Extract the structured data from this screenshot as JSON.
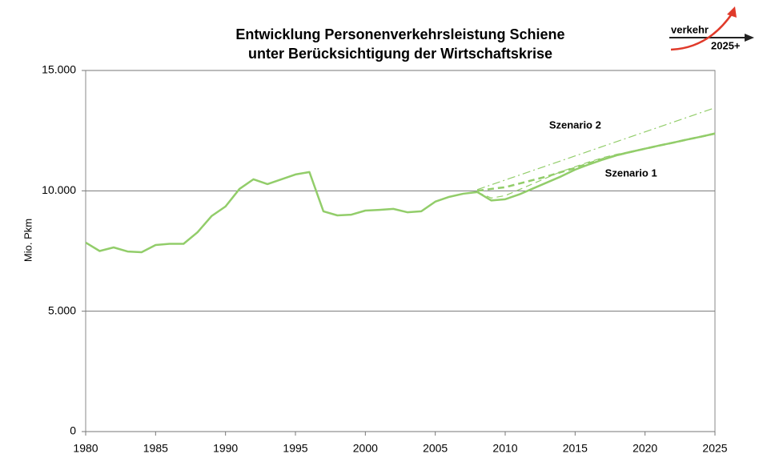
{
  "chart_data": {
    "type": "line",
    "title": [
      "Entwicklung Personenverkehrsleistung Schiene",
      "unter Berücksichtigung der Wirtschaftskrise"
    ],
    "ylabel": "Mio. Pkm",
    "logo": {
      "top": "verkehr",
      "bottom": "2025+"
    },
    "annotations": [
      {
        "text": "Szenario 2",
        "x": 2015,
        "y": 12700
      },
      {
        "text": "Szenario 1",
        "x": 2019,
        "y": 10700
      }
    ],
    "x": [
      1980,
      1981,
      1982,
      1983,
      1984,
      1985,
      1986,
      1987,
      1988,
      1989,
      1990,
      1991,
      1992,
      1993,
      1994,
      1995,
      1996,
      1997,
      1998,
      1999,
      2000,
      2001,
      2002,
      2003,
      2004,
      2005,
      2006,
      2007,
      2008,
      2009,
      2010,
      2011,
      2012,
      2013,
      2014,
      2015,
      2016,
      2017,
      2018,
      2019,
      2020,
      2021,
      2022,
      2023,
      2024,
      2025
    ],
    "xlim": [
      1980,
      2025
    ],
    "xticks": [
      1980,
      1985,
      1990,
      1995,
      2000,
      2005,
      2010,
      2015,
      2020,
      2025
    ],
    "ylim": [
      0,
      15000
    ],
    "yticks": [
      {
        "value": 0,
        "label": "0"
      },
      {
        "value": 5000,
        "label": "5.000"
      },
      {
        "value": 10000,
        "label": "10.000"
      },
      {
        "value": 15000,
        "label": "15.000"
      }
    ],
    "grid": true,
    "series": [
      {
        "color": "#92cd6a",
        "width": 2.5,
        "dash": "solid",
        "values": [
          7850,
          7500,
          7650,
          7480,
          7450,
          7750,
          7800,
          7800,
          8280,
          8950,
          9350,
          10080,
          10480,
          10280,
          10480,
          10680,
          10780,
          9150,
          8980,
          9010,
          9180,
          9210,
          9250,
          9110,
          9150,
          9550,
          9750,
          9880,
          9950,
          null,
          null,
          null,
          null,
          null,
          null,
          null,
          null,
          null,
          null,
          null,
          null,
          null,
          null,
          null,
          null,
          null
        ]
      },
      {
        "color": "#92cd6a",
        "width": 1.2,
        "dash": "dashdot",
        "values": [
          null,
          null,
          null,
          null,
          null,
          null,
          null,
          null,
          null,
          null,
          null,
          null,
          null,
          null,
          null,
          null,
          null,
          null,
          null,
          null,
          null,
          null,
          null,
          null,
          null,
          null,
          null,
          null,
          10050,
          10250,
          10450,
          10650,
          10850,
          11050,
          11250,
          11450,
          11650,
          11850,
          12050,
          12250,
          12450,
          12650,
          12850,
          13050,
          13250,
          13450
        ]
      },
      {
        "color": "#92cd6a",
        "width": 1.2,
        "dash": "dashed",
        "values": [
          null,
          null,
          null,
          null,
          null,
          null,
          null,
          null,
          null,
          null,
          null,
          null,
          null,
          null,
          null,
          null,
          null,
          null,
          null,
          null,
          null,
          null,
          null,
          null,
          null,
          null,
          null,
          null,
          9950,
          9700,
          9800,
          10050,
          10300,
          10550,
          10800,
          11000,
          11200,
          11380,
          11520,
          11640,
          11760,
          11880,
          12000,
          12130,
          12250,
          12380
        ]
      },
      {
        "color": "#92cd6a",
        "width": 2.5,
        "dash": "dashed",
        "values": [
          null,
          null,
          null,
          null,
          null,
          null,
          null,
          null,
          null,
          null,
          null,
          null,
          null,
          null,
          null,
          null,
          null,
          null,
          null,
          null,
          null,
          null,
          null,
          null,
          null,
          null,
          null,
          null,
          10000,
          10080,
          10150,
          10300,
          10450,
          10600,
          10780,
          10950,
          11150,
          11330,
          11480,
          11620,
          11750,
          11880,
          12000,
          12130,
          12250,
          12380
        ]
      },
      {
        "color": "#92cd6a",
        "width": 2.5,
        "dash": "solid",
        "values": [
          null,
          null,
          null,
          null,
          null,
          null,
          null,
          null,
          null,
          null,
          null,
          null,
          null,
          null,
          null,
          null,
          null,
          null,
          null,
          null,
          null,
          null,
          null,
          null,
          null,
          null,
          null,
          null,
          9950,
          9600,
          9650,
          9850,
          10100,
          10350,
          10600,
          10880,
          11100,
          11300,
          11480,
          11620,
          11750,
          11880,
          12000,
          12130,
          12250,
          12380
        ]
      }
    ]
  }
}
